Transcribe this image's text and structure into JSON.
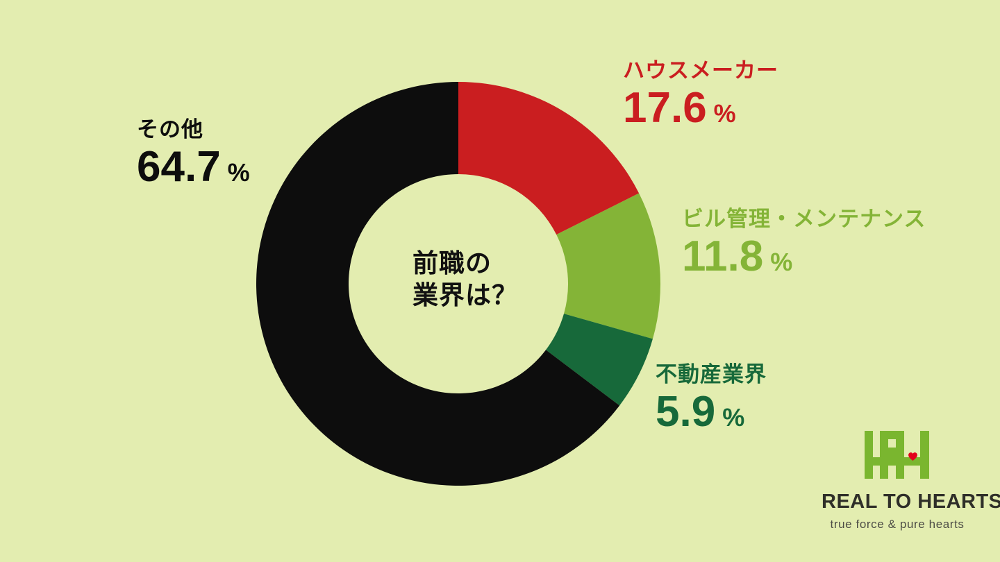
{
  "page": {
    "background": "#e3edb0"
  },
  "chart_data": {
    "type": "pie",
    "donut": true,
    "title": "前職の業界は？",
    "center_label": {
      "line1": "前職の",
      "line2": "業界は？"
    },
    "unit": "%",
    "start_angle_deg": 0,
    "direction": "clockwise",
    "outer_radius_px": 291,
    "inner_radius_px": 158,
    "segments": [
      {
        "label": "ハウスメーカー",
        "value": 17.6,
        "color": "#ca1e20"
      },
      {
        "label": "ビル管理・メンテナンス",
        "value": 11.8,
        "color": "#84b437"
      },
      {
        "label": "不動産業界",
        "value": 5.9,
        "color": "#17693a"
      },
      {
        "label": "その他",
        "value": 64.7,
        "color": "#0d0d0d"
      }
    ]
  },
  "logo": {
    "mark_icon": "hh-heart-monogram",
    "name": "REAL TO HEARTS",
    "tagline": "true force & pure hearts",
    "mark_color": "#7ab62f",
    "heart_color": "#e3001b",
    "wordmark_color": "#2f2f29",
    "tagline_color": "#4d4d46"
  }
}
